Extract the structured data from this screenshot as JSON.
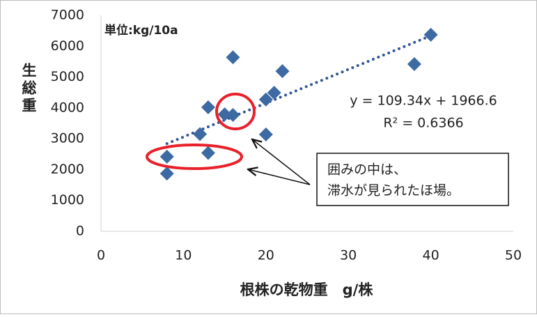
{
  "chart_data": {
    "type": "scatter",
    "unit_note": "単位:kg/10a",
    "x_label": "根株の乾物重　g/株",
    "y_label": "生総重",
    "series": [
      {
        "name": "生総重",
        "color": "#3d6aa3",
        "x": [
          8,
          8,
          12,
          13,
          13,
          15,
          16,
          16,
          20,
          20,
          21,
          22,
          38,
          40
        ],
        "values": [
          1870,
          2420,
          3150,
          2540,
          4020,
          3790,
          3770,
          5640,
          4270,
          3140,
          4490,
          5190,
          5420,
          6370
        ]
      }
    ],
    "trendline": {
      "slope": 109.34,
      "intercept": 1966.6,
      "equation": "y = 109.34x + 1966.6",
      "r2": "R² = 0.6366"
    },
    "callout": [
      "囲みの中は、",
      "滞水が見られたほ場。"
    ],
    "xlim": [
      0,
      50
    ],
    "xticks": [
      0,
      10,
      20,
      30,
      40,
      50
    ],
    "ylim": [
      0,
      7000
    ],
    "yticks": [
      0,
      1000,
      2000,
      3000,
      4000,
      5000,
      6000,
      7000
    ],
    "grid": false
  }
}
